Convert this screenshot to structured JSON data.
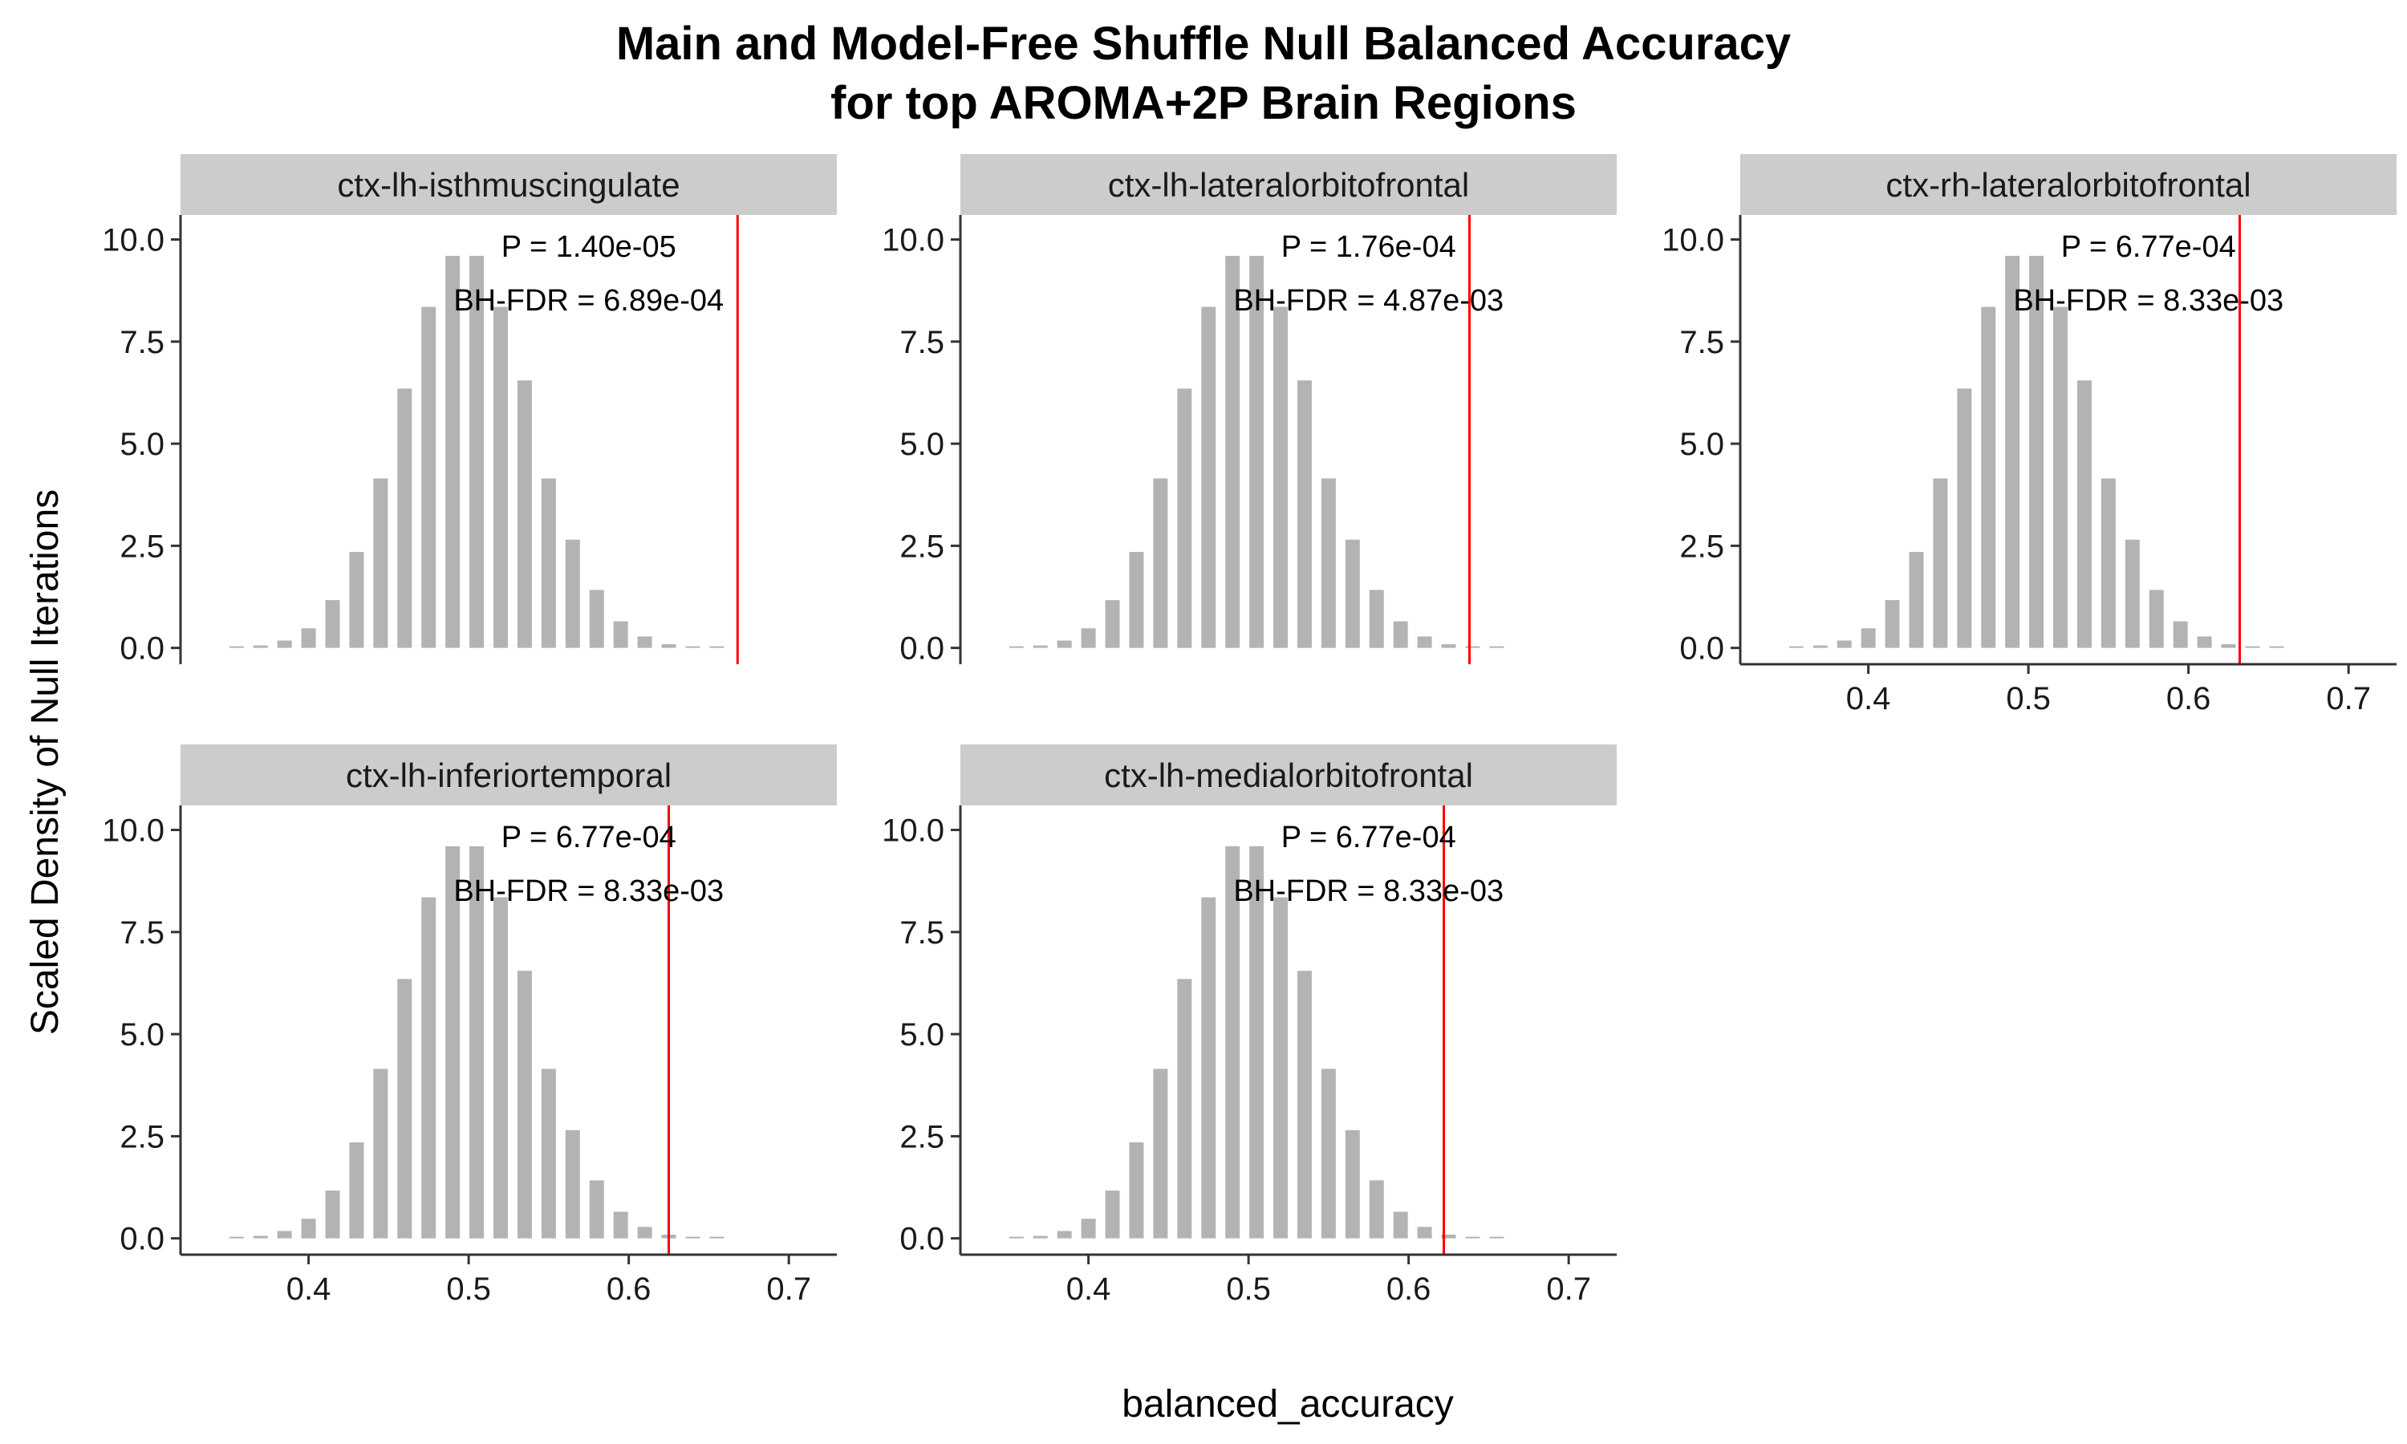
{
  "chart_data": {
    "type": "bar",
    "title_lines": [
      "Main and Model-Free Shuffle Null Balanced Accuracy",
      "for top AROMA+2P Brain Regions"
    ],
    "xlabel": "balanced_accuracy",
    "ylabel": "Scaled Density of Null Iterations",
    "xlim": [
      0.32,
      0.73
    ],
    "ylim": [
      -0.4,
      10.6
    ],
    "x_ticks": [
      0.4,
      0.5,
      0.6,
      0.7
    ],
    "x_tick_labels": [
      "0.4",
      "0.5",
      "0.6",
      "0.7"
    ],
    "y_ticks": [
      0,
      2.5,
      5,
      7.5,
      10
    ],
    "y_tick_labels": [
      "0.0",
      "2.5",
      "5.0",
      "7.5",
      "10.0"
    ],
    "null_distribution": {
      "bin_centers": [
        0.355,
        0.37,
        0.385,
        0.4,
        0.415,
        0.43,
        0.445,
        0.46,
        0.475,
        0.49,
        0.505,
        0.52,
        0.535,
        0.55,
        0.565,
        0.58,
        0.595,
        0.61,
        0.625,
        0.64,
        0.655
      ],
      "density": [
        0.02,
        0.06,
        0.18,
        0.48,
        1.17,
        2.35,
        4.15,
        6.35,
        8.35,
        9.6,
        9.6,
        8.35,
        6.55,
        4.15,
        2.65,
        1.42,
        0.65,
        0.28,
        0.09,
        0.03,
        0.01
      ]
    },
    "colors": {
      "bars": "#b3b3b3",
      "observed_line": "#ff0000",
      "strip": "#cccccc",
      "axis": "#333333"
    },
    "panels": [
      {
        "name": "ctx-lh-isthmuscingulate",
        "observed": 0.668,
        "p_label": "P = 1.40e-05",
        "fdr_label": "BH-FDR = 6.89e-04"
      },
      {
        "name": "ctx-lh-lateralorbitofrontal",
        "observed": 0.638,
        "p_label": "P = 1.76e-04",
        "fdr_label": "BH-FDR = 4.87e-03"
      },
      {
        "name": "ctx-rh-lateralorbitofrontal",
        "observed": 0.632,
        "p_label": "P = 6.77e-04",
        "fdr_label": "BH-FDR = 8.33e-03"
      },
      {
        "name": "ctx-lh-inferiortemporal",
        "observed": 0.625,
        "p_label": "P = 6.77e-04",
        "fdr_label": "BH-FDR = 8.33e-03"
      },
      {
        "name": "ctx-lh-medialorbitofrontal",
        "observed": 0.622,
        "p_label": "P = 6.77e-04",
        "fdr_label": "BH-FDR = 8.33e-03"
      }
    ]
  }
}
